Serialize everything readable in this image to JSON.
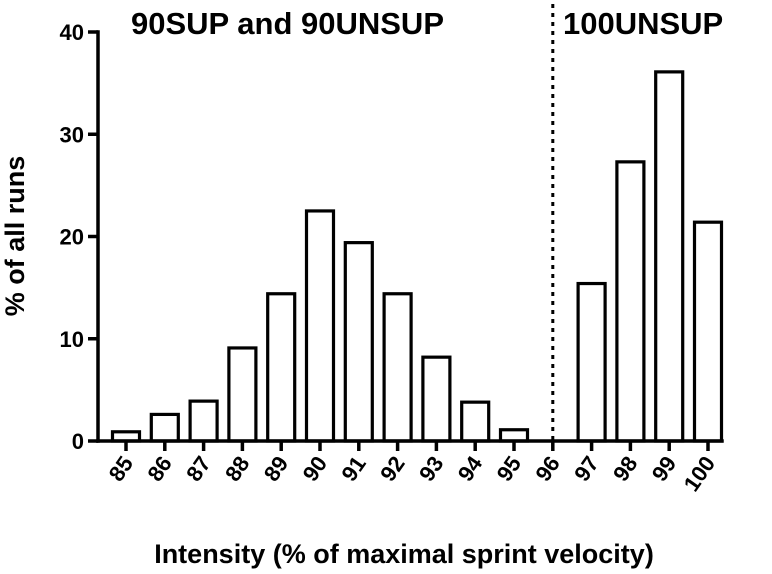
{
  "chart_data": {
    "type": "bar",
    "categories": [
      "85",
      "86",
      "87",
      "88",
      "89",
      "90",
      "91",
      "92",
      "93",
      "94",
      "95",
      "96",
      "97",
      "98",
      "99",
      "100"
    ],
    "values": [
      0.9,
      2.6,
      3.9,
      9.1,
      14.4,
      22.5,
      19.4,
      14.4,
      8.2,
      3.8,
      1.1,
      0,
      15.4,
      27.3,
      36.1,
      21.4
    ],
    "xlabel": "Intensity (% of maximal sprint velocity)",
    "ylabel": "% of all runs",
    "ylim": [
      0,
      40
    ],
    "yticks": [
      "0",
      "10",
      "20",
      "30",
      "40"
    ],
    "grid": false,
    "bar_fill": "#ffffff",
    "bar_stroke": "#000000",
    "annotations": {
      "left_group": "90SUP and 90UNSUP",
      "right_group": "100UNSUP",
      "divider_at": "96"
    }
  }
}
